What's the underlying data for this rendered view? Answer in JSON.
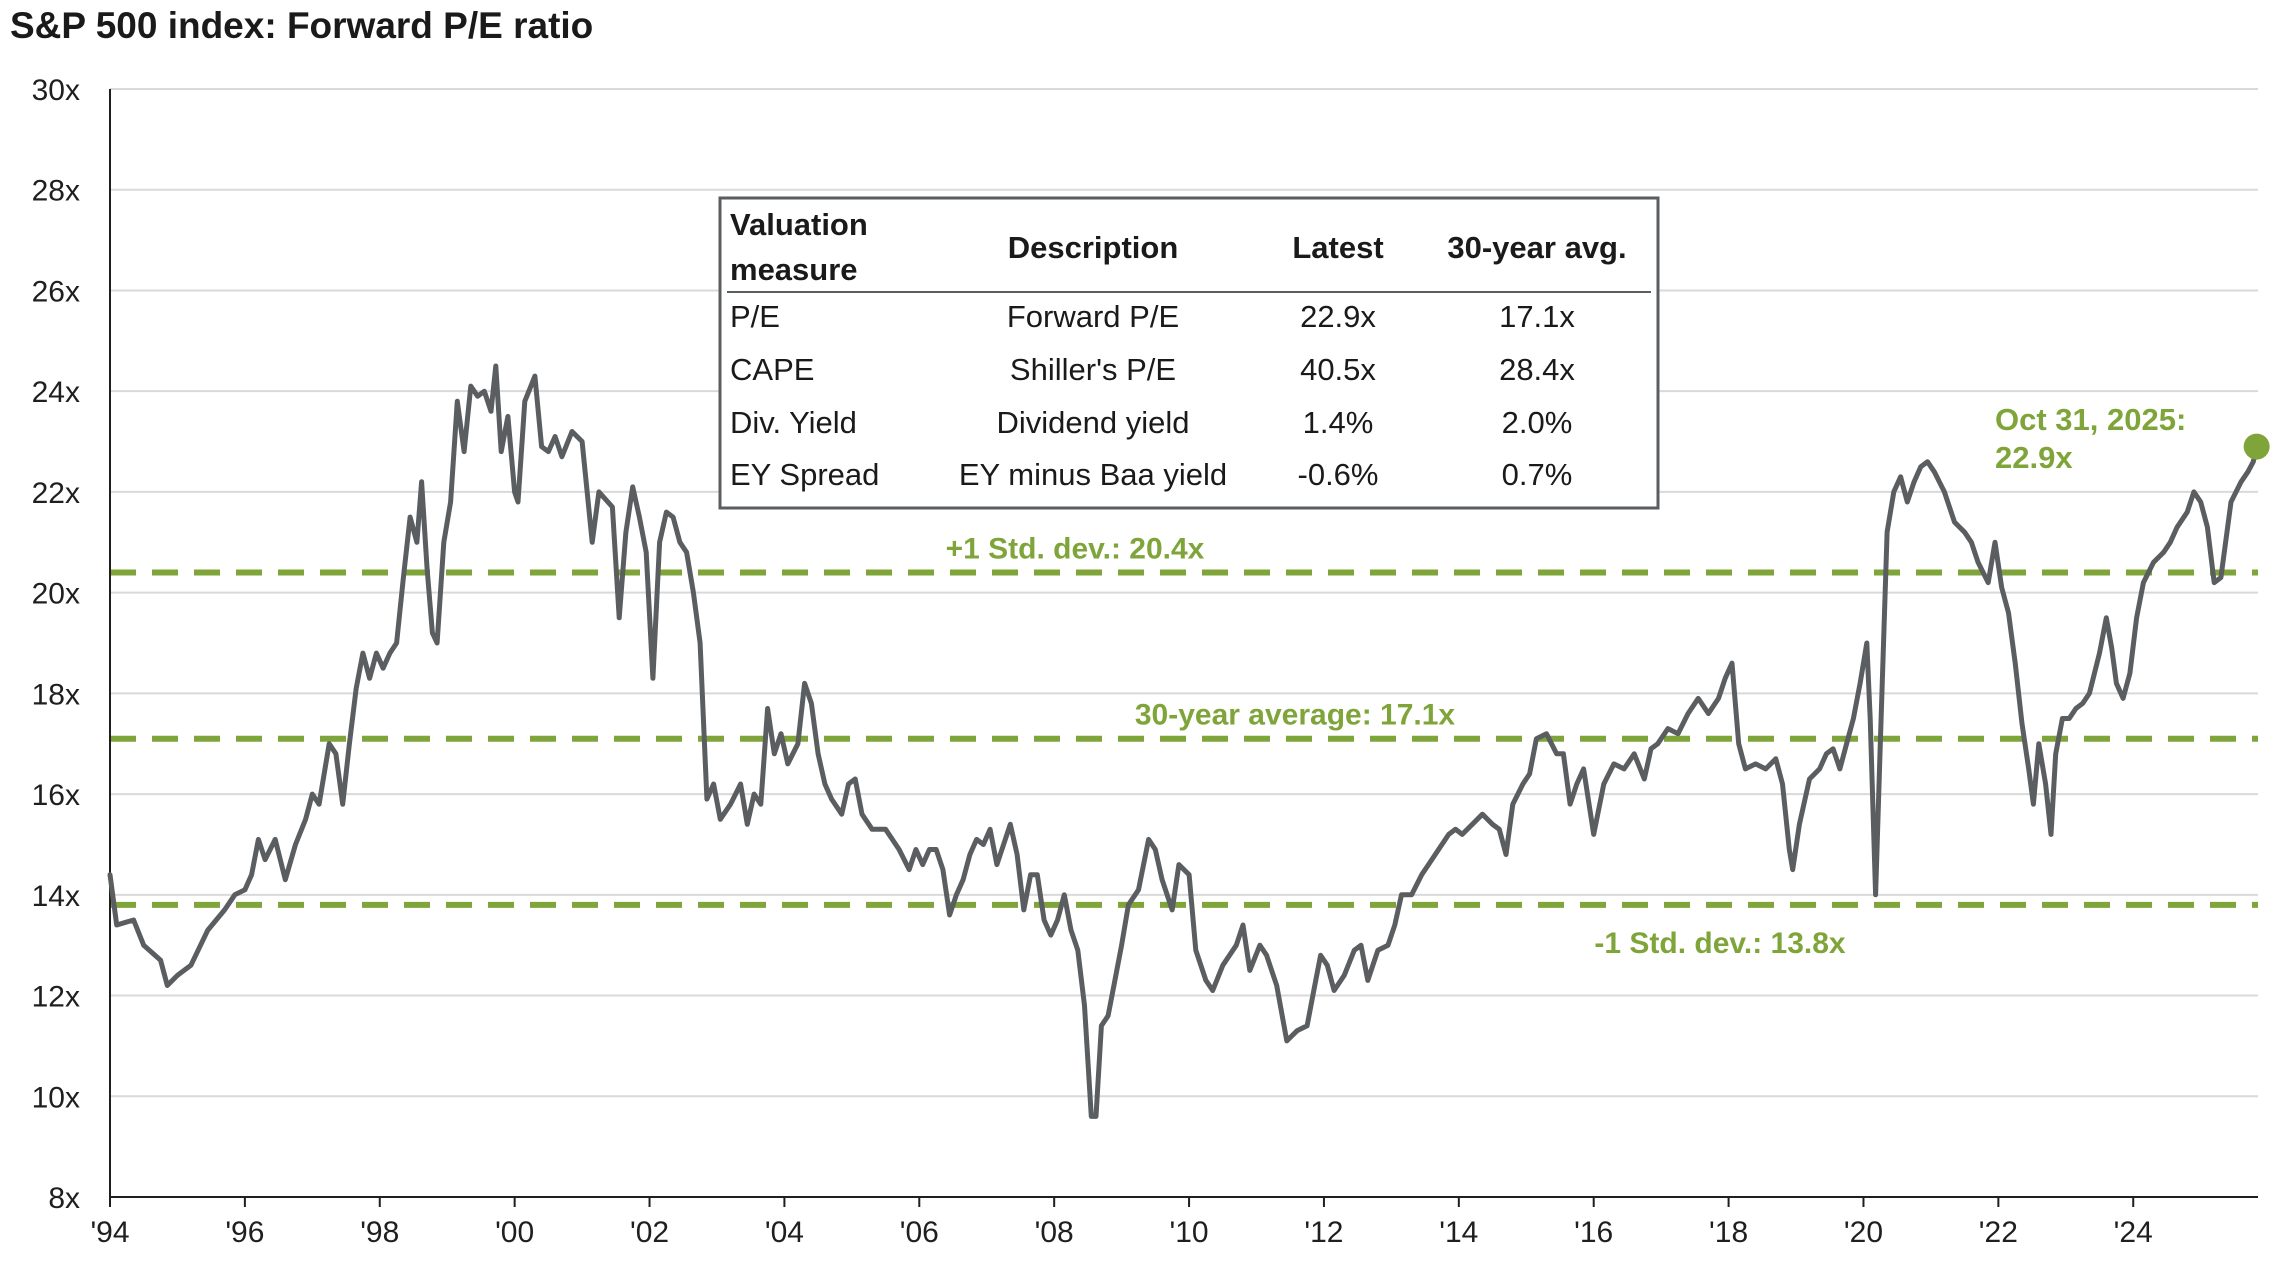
{
  "chart_data": {
    "type": "line",
    "title": "S&P 500 index: Forward P/E ratio",
    "xlabel": "",
    "ylabel": "",
    "x_range": [
      1994.0,
      2025.85
    ],
    "ylim": [
      8,
      30
    ],
    "y_ticks": [
      8,
      10,
      12,
      14,
      16,
      18,
      20,
      22,
      24,
      26,
      28,
      30
    ],
    "y_tick_labels": [
      "8x",
      "10x",
      "12x",
      "14x",
      "16x",
      "18x",
      "20x",
      "22x",
      "24x",
      "26x",
      "28x",
      "30x"
    ],
    "x_ticks": [
      1994,
      1996,
      1998,
      2000,
      2002,
      2004,
      2006,
      2008,
      2010,
      2012,
      2014,
      2016,
      2018,
      2020,
      2022,
      2024
    ],
    "x_tick_labels": [
      "'94",
      "'96",
      "'98",
      "'00",
      "'02",
      "'04",
      "'06",
      "'08",
      "'10",
      "'12",
      "'14",
      "'16",
      "'18",
      "'20",
      "'22",
      "'24"
    ],
    "grid": "horizontal",
    "series": [
      {
        "color": "#5b5e61",
        "points": [
          [
            1994.0,
            14.4
          ],
          [
            1994.1,
            13.4
          ],
          [
            1994.35,
            13.5
          ],
          [
            1994.5,
            13.0
          ],
          [
            1994.75,
            12.7
          ],
          [
            1994.85,
            12.2
          ],
          [
            1995.0,
            12.4
          ],
          [
            1995.2,
            12.6
          ],
          [
            1995.45,
            13.3
          ],
          [
            1995.7,
            13.7
          ],
          [
            1995.85,
            14.0
          ],
          [
            1996.0,
            14.1
          ],
          [
            1996.1,
            14.4
          ],
          [
            1996.2,
            15.1
          ],
          [
            1996.3,
            14.7
          ],
          [
            1996.45,
            15.1
          ],
          [
            1996.6,
            14.3
          ],
          [
            1996.75,
            15.0
          ],
          [
            1996.9,
            15.5
          ],
          [
            1997.0,
            16.0
          ],
          [
            1997.1,
            15.8
          ],
          [
            1997.25,
            17.0
          ],
          [
            1997.35,
            16.8
          ],
          [
            1997.45,
            15.8
          ],
          [
            1997.55,
            17.0
          ],
          [
            1997.65,
            18.1
          ],
          [
            1997.75,
            18.8
          ],
          [
            1997.85,
            18.3
          ],
          [
            1997.95,
            18.8
          ],
          [
            1998.05,
            18.5
          ],
          [
            1998.15,
            18.8
          ],
          [
            1998.25,
            19.0
          ],
          [
            1998.35,
            20.3
          ],
          [
            1998.45,
            21.5
          ],
          [
            1998.55,
            21.0
          ],
          [
            1998.62,
            22.2
          ],
          [
            1998.7,
            20.5
          ],
          [
            1998.78,
            19.2
          ],
          [
            1998.85,
            19.0
          ],
          [
            1998.95,
            21.0
          ],
          [
            1999.05,
            21.8
          ],
          [
            1999.15,
            23.8
          ],
          [
            1999.25,
            22.8
          ],
          [
            1999.35,
            24.1
          ],
          [
            1999.45,
            23.9
          ],
          [
            1999.55,
            24.0
          ],
          [
            1999.65,
            23.6
          ],
          [
            1999.72,
            24.5
          ],
          [
            1999.8,
            22.8
          ],
          [
            1999.9,
            23.5
          ],
          [
            2000.0,
            22.0
          ],
          [
            2000.05,
            21.8
          ],
          [
            2000.15,
            23.8
          ],
          [
            2000.3,
            24.3
          ],
          [
            2000.4,
            22.9
          ],
          [
            2000.5,
            22.8
          ],
          [
            2000.6,
            23.1
          ],
          [
            2000.7,
            22.7
          ],
          [
            2000.85,
            23.2
          ],
          [
            2001.0,
            23.0
          ],
          [
            2001.15,
            21.0
          ],
          [
            2001.25,
            22.0
          ],
          [
            2001.45,
            21.7
          ],
          [
            2001.55,
            19.5
          ],
          [
            2001.65,
            21.2
          ],
          [
            2001.75,
            22.1
          ],
          [
            2001.85,
            21.5
          ],
          [
            2001.95,
            20.8
          ],
          [
            2002.05,
            18.3
          ],
          [
            2002.15,
            21.0
          ],
          [
            2002.25,
            21.6
          ],
          [
            2002.35,
            21.5
          ],
          [
            2002.45,
            21.0
          ],
          [
            2002.55,
            20.8
          ],
          [
            2002.65,
            20.0
          ],
          [
            2002.75,
            19.0
          ],
          [
            2002.85,
            15.9
          ],
          [
            2002.95,
            16.2
          ],
          [
            2003.05,
            15.5
          ],
          [
            2003.2,
            15.8
          ],
          [
            2003.35,
            16.2
          ],
          [
            2003.45,
            15.4
          ],
          [
            2003.55,
            16.0
          ],
          [
            2003.65,
            15.8
          ],
          [
            2003.75,
            17.7
          ],
          [
            2003.85,
            16.8
          ],
          [
            2003.95,
            17.2
          ],
          [
            2004.05,
            16.6
          ],
          [
            2004.2,
            17.0
          ],
          [
            2004.3,
            18.2
          ],
          [
            2004.4,
            17.8
          ],
          [
            2004.5,
            16.8
          ],
          [
            2004.6,
            16.2
          ],
          [
            2004.7,
            15.9
          ],
          [
            2004.85,
            15.6
          ],
          [
            2004.95,
            16.2
          ],
          [
            2005.05,
            16.3
          ],
          [
            2005.15,
            15.6
          ],
          [
            2005.3,
            15.3
          ],
          [
            2005.5,
            15.3
          ],
          [
            2005.7,
            14.9
          ],
          [
            2005.85,
            14.5
          ],
          [
            2005.95,
            14.9
          ],
          [
            2006.05,
            14.6
          ],
          [
            2006.15,
            14.9
          ],
          [
            2006.25,
            14.9
          ],
          [
            2006.35,
            14.5
          ],
          [
            2006.45,
            13.6
          ],
          [
            2006.55,
            14.0
          ],
          [
            2006.65,
            14.3
          ],
          [
            2006.75,
            14.8
          ],
          [
            2006.85,
            15.1
          ],
          [
            2006.95,
            15.0
          ],
          [
            2007.05,
            15.3
          ],
          [
            2007.15,
            14.6
          ],
          [
            2007.25,
            15.0
          ],
          [
            2007.35,
            15.4
          ],
          [
            2007.45,
            14.8
          ],
          [
            2007.55,
            13.7
          ],
          [
            2007.65,
            14.4
          ],
          [
            2007.75,
            14.4
          ],
          [
            2007.85,
            13.5
          ],
          [
            2007.95,
            13.2
          ],
          [
            2008.05,
            13.5
          ],
          [
            2008.15,
            14.0
          ],
          [
            2008.25,
            13.3
          ],
          [
            2008.35,
            12.9
          ],
          [
            2008.45,
            11.8
          ],
          [
            2008.55,
            9.6
          ],
          [
            2008.62,
            9.6
          ],
          [
            2008.7,
            11.4
          ],
          [
            2008.8,
            11.6
          ],
          [
            2008.9,
            12.3
          ],
          [
            2009.0,
            13.0
          ],
          [
            2009.1,
            13.8
          ],
          [
            2009.25,
            14.1
          ],
          [
            2009.4,
            15.1
          ],
          [
            2009.5,
            14.9
          ],
          [
            2009.6,
            14.3
          ],
          [
            2009.75,
            13.7
          ],
          [
            2009.85,
            14.6
          ],
          [
            2010.0,
            14.4
          ],
          [
            2010.1,
            12.9
          ],
          [
            2010.25,
            12.3
          ],
          [
            2010.35,
            12.1
          ],
          [
            2010.5,
            12.6
          ],
          [
            2010.6,
            12.8
          ],
          [
            2010.7,
            13.0
          ],
          [
            2010.8,
            13.4
          ],
          [
            2010.9,
            12.5
          ],
          [
            2011.05,
            13.0
          ],
          [
            2011.15,
            12.8
          ],
          [
            2011.3,
            12.2
          ],
          [
            2011.45,
            11.1
          ],
          [
            2011.6,
            11.3
          ],
          [
            2011.75,
            11.4
          ],
          [
            2011.85,
            12.1
          ],
          [
            2011.95,
            12.8
          ],
          [
            2012.05,
            12.6
          ],
          [
            2012.15,
            12.1
          ],
          [
            2012.3,
            12.4
          ],
          [
            2012.45,
            12.9
          ],
          [
            2012.55,
            13.0
          ],
          [
            2012.65,
            12.3
          ],
          [
            2012.8,
            12.9
          ],
          [
            2012.95,
            13.0
          ],
          [
            2013.05,
            13.4
          ],
          [
            2013.15,
            14.0
          ],
          [
            2013.3,
            14.0
          ],
          [
            2013.45,
            14.4
          ],
          [
            2013.55,
            14.6
          ],
          [
            2013.7,
            14.9
          ],
          [
            2013.85,
            15.2
          ],
          [
            2013.95,
            15.3
          ],
          [
            2014.05,
            15.2
          ],
          [
            2014.2,
            15.4
          ],
          [
            2014.35,
            15.6
          ],
          [
            2014.5,
            15.4
          ],
          [
            2014.6,
            15.3
          ],
          [
            2014.7,
            14.8
          ],
          [
            2014.8,
            15.8
          ],
          [
            2014.95,
            16.2
          ],
          [
            2015.05,
            16.4
          ],
          [
            2015.15,
            17.1
          ],
          [
            2015.3,
            17.2
          ],
          [
            2015.45,
            16.8
          ],
          [
            2015.55,
            16.8
          ],
          [
            2015.65,
            15.8
          ],
          [
            2015.75,
            16.2
          ],
          [
            2015.85,
            16.5
          ],
          [
            2016.0,
            15.2
          ],
          [
            2016.15,
            16.2
          ],
          [
            2016.3,
            16.6
          ],
          [
            2016.45,
            16.5
          ],
          [
            2016.6,
            16.8
          ],
          [
            2016.75,
            16.3
          ],
          [
            2016.85,
            16.9
          ],
          [
            2016.95,
            17.0
          ],
          [
            2017.1,
            17.3
          ],
          [
            2017.25,
            17.2
          ],
          [
            2017.4,
            17.6
          ],
          [
            2017.55,
            17.9
          ],
          [
            2017.7,
            17.6
          ],
          [
            2017.85,
            17.9
          ],
          [
            2017.95,
            18.3
          ],
          [
            2018.05,
            18.6
          ],
          [
            2018.15,
            17.0
          ],
          [
            2018.25,
            16.5
          ],
          [
            2018.4,
            16.6
          ],
          [
            2018.55,
            16.5
          ],
          [
            2018.7,
            16.7
          ],
          [
            2018.8,
            16.2
          ],
          [
            2018.9,
            14.9
          ],
          [
            2018.95,
            14.5
          ],
          [
            2019.05,
            15.4
          ],
          [
            2019.2,
            16.3
          ],
          [
            2019.35,
            16.5
          ],
          [
            2019.45,
            16.8
          ],
          [
            2019.55,
            16.9
          ],
          [
            2019.65,
            16.5
          ],
          [
            2019.75,
            17.0
          ],
          [
            2019.85,
            17.5
          ],
          [
            2019.95,
            18.2
          ],
          [
            2020.05,
            19.0
          ],
          [
            2020.1,
            17.5
          ],
          [
            2020.18,
            14.0
          ],
          [
            2020.25,
            17.0
          ],
          [
            2020.35,
            21.2
          ],
          [
            2020.45,
            22.0
          ],
          [
            2020.55,
            22.3
          ],
          [
            2020.65,
            21.8
          ],
          [
            2020.75,
            22.2
          ],
          [
            2020.85,
            22.5
          ],
          [
            2020.95,
            22.6
          ],
          [
            2021.05,
            22.4
          ],
          [
            2021.2,
            22.0
          ],
          [
            2021.35,
            21.4
          ],
          [
            2021.5,
            21.2
          ],
          [
            2021.6,
            21.0
          ],
          [
            2021.7,
            20.6
          ],
          [
            2021.85,
            20.2
          ],
          [
            2021.95,
            21.0
          ],
          [
            2022.05,
            20.1
          ],
          [
            2022.15,
            19.6
          ],
          [
            2022.25,
            18.6
          ],
          [
            2022.35,
            17.4
          ],
          [
            2022.45,
            16.5
          ],
          [
            2022.52,
            15.8
          ],
          [
            2022.6,
            17.0
          ],
          [
            2022.7,
            16.2
          ],
          [
            2022.78,
            15.2
          ],
          [
            2022.85,
            16.8
          ],
          [
            2022.95,
            17.5
          ],
          [
            2023.05,
            17.5
          ],
          [
            2023.15,
            17.7
          ],
          [
            2023.25,
            17.8
          ],
          [
            2023.35,
            18.0
          ],
          [
            2023.5,
            18.8
          ],
          [
            2023.6,
            19.5
          ],
          [
            2023.68,
            18.9
          ],
          [
            2023.75,
            18.2
          ],
          [
            2023.85,
            17.9
          ],
          [
            2023.95,
            18.4
          ],
          [
            2024.05,
            19.5
          ],
          [
            2024.15,
            20.2
          ],
          [
            2024.3,
            20.6
          ],
          [
            2024.45,
            20.8
          ],
          [
            2024.55,
            21.0
          ],
          [
            2024.65,
            21.3
          ],
          [
            2024.8,
            21.6
          ],
          [
            2024.9,
            22.0
          ],
          [
            2025.0,
            21.8
          ],
          [
            2025.1,
            21.3
          ],
          [
            2025.2,
            20.2
          ],
          [
            2025.3,
            20.3
          ],
          [
            2025.45,
            21.8
          ],
          [
            2025.6,
            22.2
          ],
          [
            2025.7,
            22.4
          ],
          [
            2025.78,
            22.6
          ],
          [
            2025.83,
            22.9
          ]
        ]
      }
    ],
    "reference_lines": [
      {
        "value": 20.4,
        "label": "+1 Std. dev.: 20.4x",
        "style": "dashed",
        "color": "#7fa53a"
      },
      {
        "value": 17.1,
        "label": "30-year average: 17.1x",
        "style": "dashed",
        "color": "#7fa53a"
      },
      {
        "value": 13.8,
        "label": "-1 Std. dev.: 13.8x",
        "style": "dashed",
        "color": "#7fa53a"
      }
    ],
    "endpoint": {
      "x": 2025.83,
      "value": 22.9,
      "label_line1": "Oct 31, 2025:",
      "label_line2": "22.9x",
      "color": "#7fa53a"
    },
    "valuation_table": {
      "headers": [
        "Valuation",
        "measure",
        "Description",
        "Latest",
        "30-year avg."
      ],
      "rows": [
        [
          "P/E",
          "Forward P/E",
          "22.9x",
          "17.1x"
        ],
        [
          "CAPE",
          "Shiller's P/E",
          "40.5x",
          "28.4x"
        ],
        [
          "Div. Yield",
          "Dividend yield",
          "1.4%",
          "2.0%"
        ],
        [
          "EY Spread",
          "EY minus Baa yield",
          "-0.6%",
          "0.7%"
        ]
      ]
    }
  }
}
